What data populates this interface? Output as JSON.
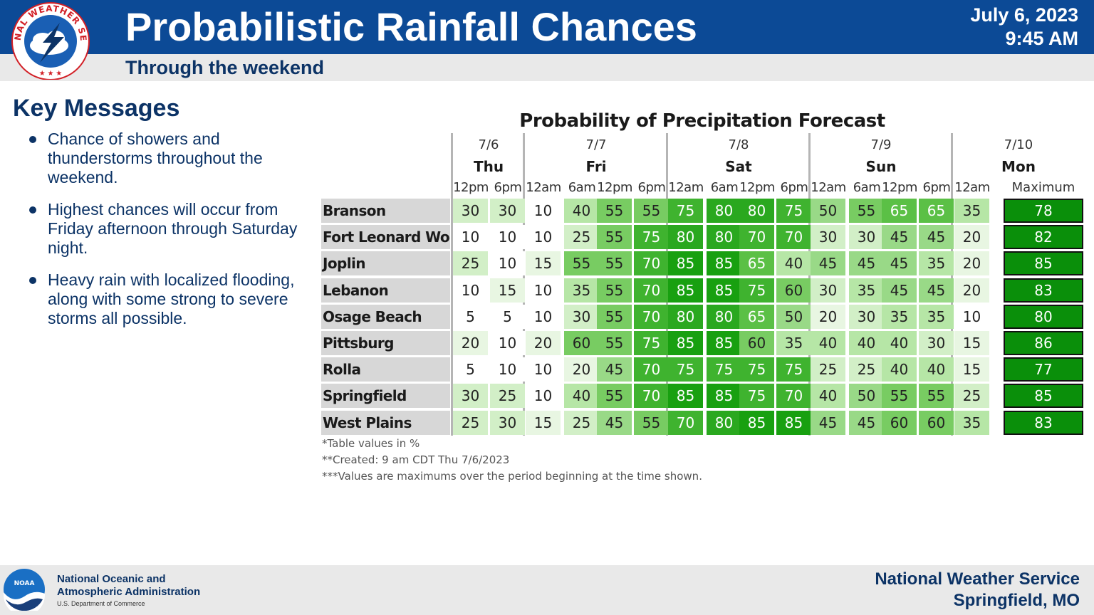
{
  "header": {
    "title": "Probabilistic Rainfall Chances",
    "subtitle": "Through the weekend",
    "date": "July 6, 2023",
    "time": "9:45 AM",
    "logo_text": "NATIONAL WEATHER SERVICE"
  },
  "key_messages": {
    "heading": "Key Messages",
    "items": [
      "Chance of showers and thunderstorms throughout the weekend.",
      "Highest chances will occur from Friday afternoon through Saturday night.",
      "Heavy rain with localized flooding, along with some strong to severe storms all possible."
    ]
  },
  "chart_data": {
    "type": "table",
    "title": "Probability of Precipitation Forecast",
    "days": [
      {
        "date": "7/6",
        "day": "Thu"
      },
      {
        "date": "7/7",
        "day": "Fri"
      },
      {
        "date": "7/8",
        "day": "Sat"
      },
      {
        "date": "7/9",
        "day": "Sun"
      },
      {
        "date": "7/10",
        "day": "Mon"
      }
    ],
    "times": [
      "12pm",
      "6pm",
      "12am",
      "6am",
      "12pm",
      "6pm",
      "12am",
      "6am",
      "12pm",
      "6pm",
      "12am",
      "6am",
      "12pm",
      "6pm",
      "12am"
    ],
    "max_label": "Maximum",
    "rows": [
      {
        "location": "Branson",
        "values": [
          30,
          30,
          10,
          40,
          55,
          55,
          75,
          80,
          80,
          75,
          50,
          55,
          65,
          65,
          35
        ],
        "max": 78
      },
      {
        "location": "Fort Leonard Wood",
        "values": [
          10,
          10,
          10,
          25,
          55,
          75,
          80,
          80,
          70,
          70,
          30,
          30,
          45,
          45,
          20
        ],
        "max": 82
      },
      {
        "location": "Joplin",
        "values": [
          25,
          10,
          15,
          55,
          55,
          70,
          85,
          85,
          65,
          40,
          45,
          45,
          45,
          35,
          20
        ],
        "max": 85
      },
      {
        "location": "Lebanon",
        "values": [
          10,
          15,
          10,
          35,
          55,
          70,
          85,
          85,
          75,
          60,
          30,
          35,
          45,
          45,
          20
        ],
        "max": 83
      },
      {
        "location": "Osage Beach",
        "values": [
          5,
          5,
          10,
          30,
          55,
          70,
          80,
          80,
          65,
          50,
          20,
          30,
          35,
          35,
          10
        ],
        "max": 80
      },
      {
        "location": "Pittsburg",
        "values": [
          20,
          10,
          20,
          60,
          55,
          75,
          85,
          85,
          60,
          35,
          40,
          40,
          40,
          30,
          15
        ],
        "max": 86
      },
      {
        "location": "Rolla",
        "values": [
          5,
          10,
          10,
          20,
          45,
          70,
          75,
          75,
          75,
          75,
          25,
          25,
          40,
          40,
          15
        ],
        "max": 77
      },
      {
        "location": "Springfield",
        "values": [
          30,
          25,
          10,
          40,
          55,
          70,
          85,
          85,
          75,
          70,
          40,
          50,
          55,
          55,
          25
        ],
        "max": 85
      },
      {
        "location": "West Plains",
        "values": [
          25,
          30,
          15,
          25,
          45,
          55,
          70,
          80,
          85,
          85,
          45,
          45,
          60,
          60,
          35
        ],
        "max": 83
      }
    ],
    "footnotes": [
      "*Table values in %",
      "**Created: 9 am CDT Thu 7/6/2023",
      "***Values are maximums over the period beginning at the time shown."
    ],
    "colors": {
      "low": "#ffffff",
      "mid": "#b6e6a6",
      "high": "#2fb32f",
      "max_cell": "#0a8f0a"
    }
  },
  "footer": {
    "noaa_line1": "National Oceanic and",
    "noaa_line2": "Atmospheric Administration",
    "noaa_dept": "U.S. Department of Commerce",
    "noaa_logo_text": "NOAA",
    "office_line1": "National Weather Service",
    "office_line2": "Springfield, MO"
  }
}
